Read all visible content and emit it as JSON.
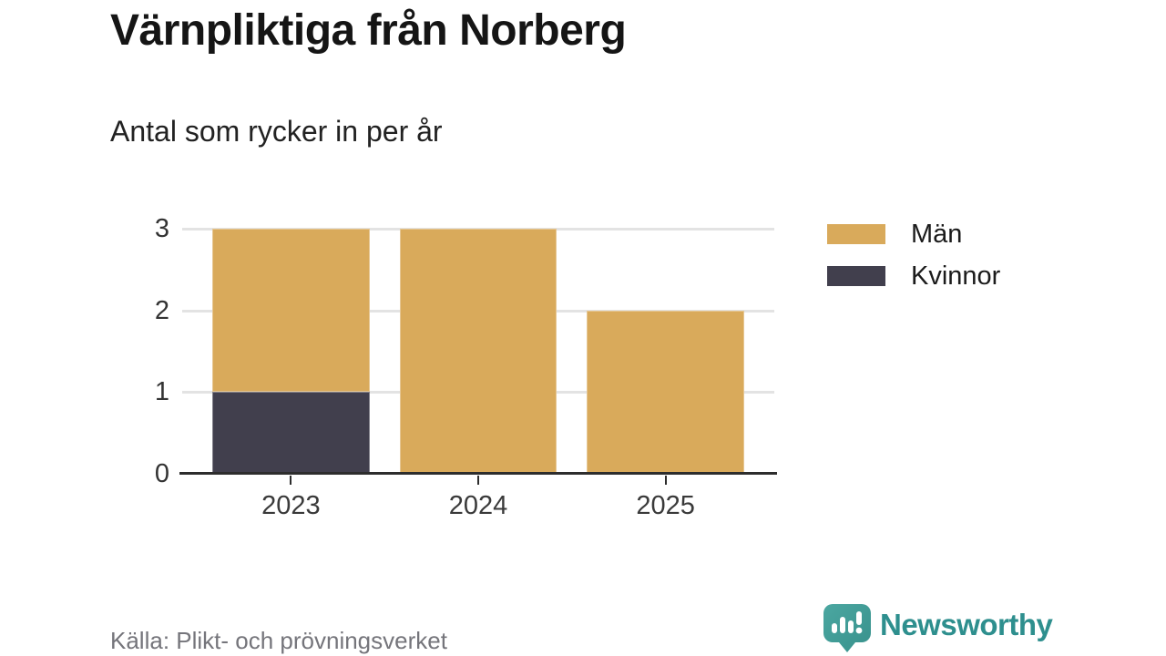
{
  "header": {
    "title": "Värnpliktiga från Norberg",
    "subtitle": "Antal som rycker in per år"
  },
  "footer": {
    "source": "Källa: Plikt- och prövningsverket",
    "brand": "Newsworthy",
    "brand_icon": "bar-chart-exclamation-speech-bubble-icon"
  },
  "colors": {
    "men": "#d9aa5b",
    "women": "#413f4d",
    "grid": "#e3e3e3",
    "axis": "#2d2d2d",
    "brand_teal": "#2e8f8e",
    "brand_mark_teal": "#45a29c"
  },
  "chart_data": {
    "type": "bar",
    "stacked": true,
    "title": "Värnpliktiga från Norberg",
    "subtitle": "Antal som rycker in per år",
    "categories": [
      "2023",
      "2024",
      "2025"
    ],
    "series": [
      {
        "name": "Män",
        "values": [
          2,
          3,
          2
        ],
        "color": "#d9aa5b"
      },
      {
        "name": "Kvinnor",
        "values": [
          1,
          0,
          0
        ],
        "color": "#413f4d"
      }
    ],
    "stack_order_bottom_to_top": [
      "Kvinnor",
      "Män"
    ],
    "totals": [
      3,
      3,
      2
    ],
    "xlabel": "",
    "ylabel": "",
    "ylim": [
      0,
      3
    ],
    "yticks": [
      0,
      1,
      2,
      3
    ],
    "grid": "horizontal",
    "legend_position": "right"
  }
}
